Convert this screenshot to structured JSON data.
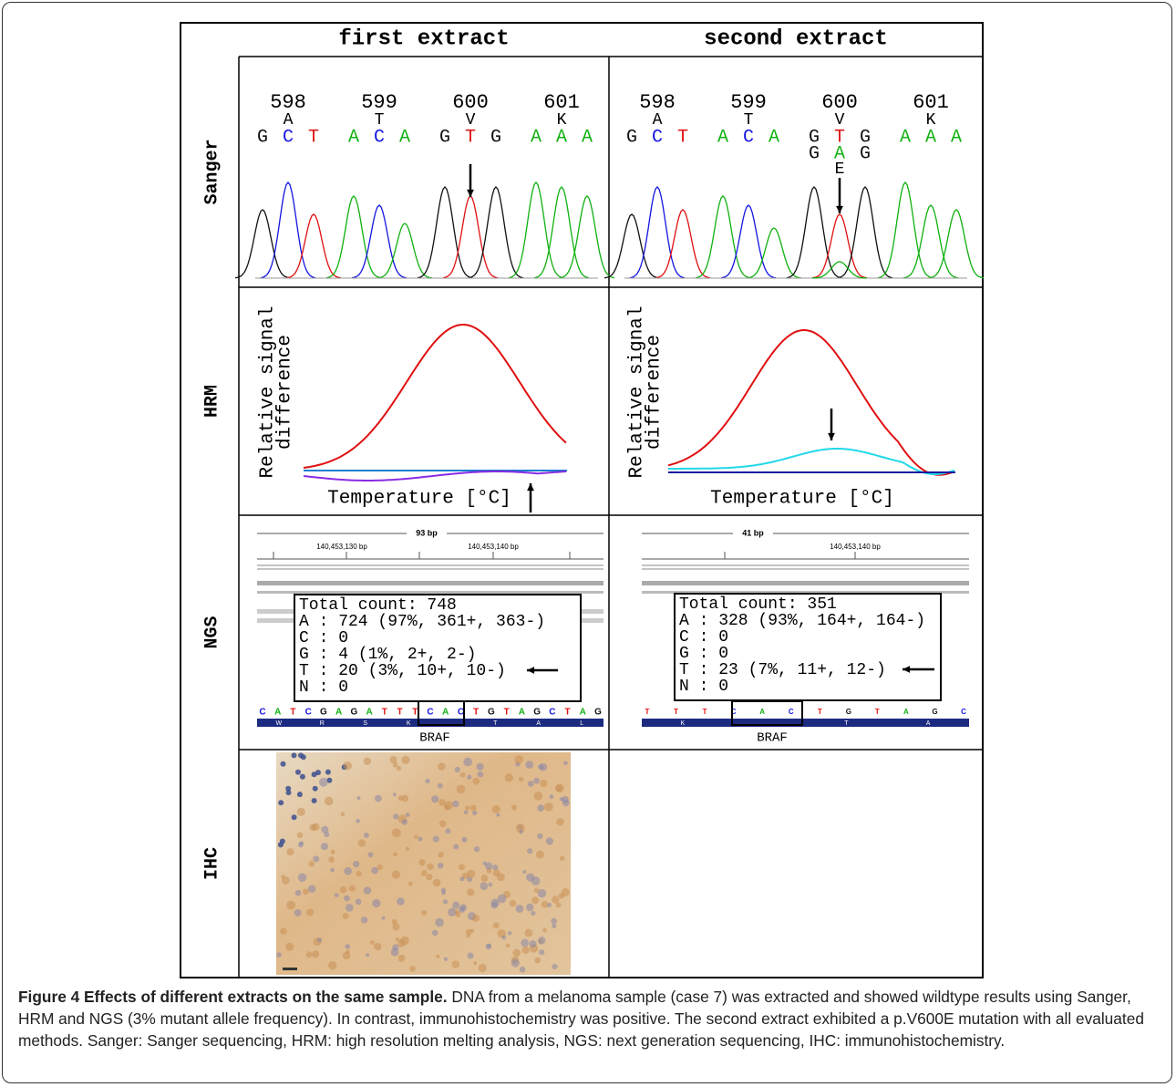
{
  "header": {
    "columns": [
      "first extract",
      "second extract"
    ]
  },
  "rows": [
    "Sanger",
    "HRM",
    "NGS",
    "IHC"
  ],
  "sanger": {
    "panels": [
      {
        "codons": [
          "598",
          "599",
          "600",
          "601"
        ],
        "amino_acids": [
          "A",
          "T",
          "V",
          "K"
        ],
        "bases": [
          "G",
          "C",
          "T",
          "A",
          "C",
          "A",
          "G",
          "T",
          "G",
          "A",
          "A",
          "A"
        ]
      },
      {
        "codons": [
          "598",
          "599",
          "600",
          "601"
        ],
        "amino_acids": [
          "A",
          "T",
          "V",
          "K"
        ],
        "bases": [
          "G",
          "C",
          "T",
          "A",
          "C",
          "A",
          "G",
          "T",
          "G",
          "A",
          "A",
          "A"
        ],
        "mutant_bases": [
          "G",
          "A",
          "G"
        ],
        "mutant_amino_acid": "E"
      }
    ]
  },
  "hrm": {
    "panels": [
      {
        "y_label": [
          "Relative signal",
          "difference"
        ],
        "x_label": "Temperature [°C]"
      },
      {
        "y_label": [
          "Relative signal",
          "difference"
        ],
        "x_label": "Temperature [°C]"
      }
    ]
  },
  "ngs": {
    "panels": [
      {
        "span": "93 bp",
        "positions": [
          "140,453,130 bp",
          "140,453,140 bp"
        ],
        "count_lines": [
          "Total count: 748",
          "A : 724 (97%, 361+, 363-)",
          "C : 0",
          "G : 4 (1%, 2+, 2-)",
          "T : 20 (3%, 10+, 10-)",
          "N : 0"
        ],
        "sequence": [
          "C",
          "A",
          "T",
          "C",
          "G",
          "A",
          "G",
          "A",
          "T",
          "T",
          "T",
          "C",
          "A",
          "C",
          "T",
          "G",
          "T",
          "A",
          "G",
          "C",
          "T",
          "A",
          "G"
        ],
        "amino_acids": [
          "W",
          "R",
          "S",
          "K",
          "T",
          "A",
          "L"
        ],
        "gene": "BRAF"
      },
      {
        "span": "41 bp",
        "positions": [
          "140,453,140 bp"
        ],
        "count_lines": [
          "Total count: 351",
          "A : 328 (93%, 164+, 164-)",
          "C : 0",
          "G : 0",
          "T : 23 (7%, 11+, 12-)",
          "N : 0"
        ],
        "sequence": [
          "T",
          "T",
          "T",
          "C",
          "A",
          "C",
          "T",
          "G",
          "T",
          "A",
          "G",
          "C"
        ],
        "amino_acids": [
          "K",
          "T",
          "A"
        ],
        "gene": "BRAF"
      }
    ]
  },
  "caption": {
    "title": "Figure 4 Effects of different extracts on the same sample.",
    "text": "DNA from a melanoma sample (case 7) was extracted and showed wildtype results using Sanger, HRM and NGS (3% mutant allele frequency). In contrast, immunohistochemistry was positive. The second extract exhibited a p.V600E mutation with all evaluated methods. Sanger: Sanger sequencing, HRM: high resolution melting analysis, NGS: next generation sequencing, IHC: immunohistochemistry."
  }
}
